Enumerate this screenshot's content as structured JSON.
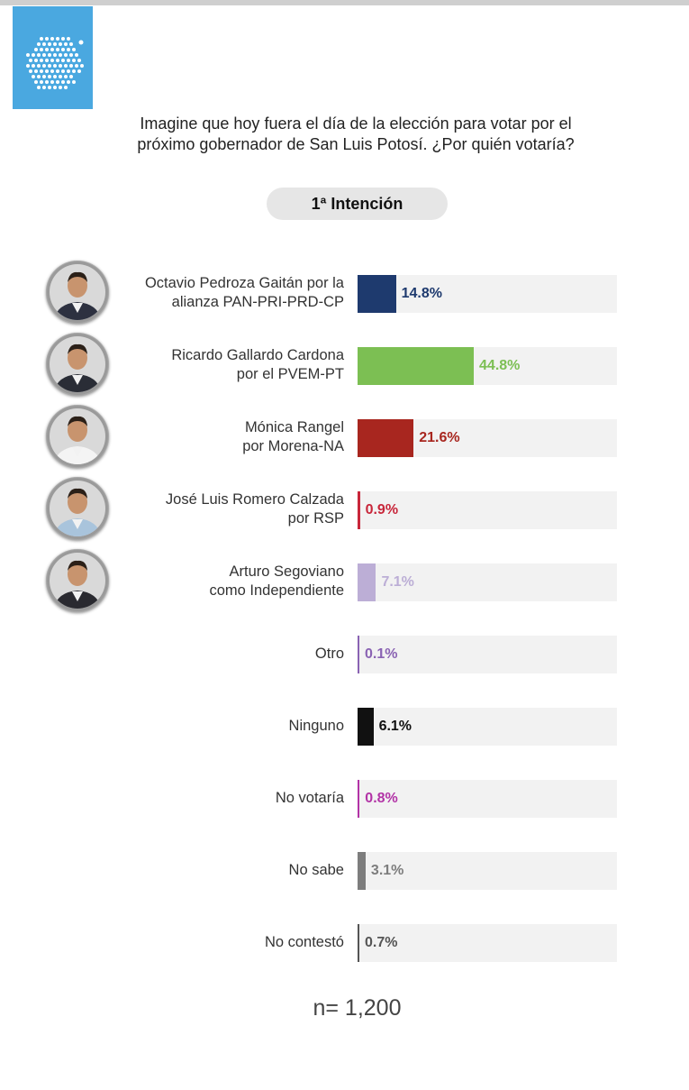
{
  "logo_icon": "dotted-hexagon-logo",
  "question": "Imagine que hoy fuera el día de la elección para votar por el próximo gobernador de San Luis Potosí. ¿Por quién votaría?",
  "question_lines": [
    "Imagine que hoy fuera el día de la elección para votar por el",
    "próximo gobernador de San Luis Potosí. ¿Por quién votaría?"
  ],
  "pill": "1ª Intención",
  "sample": "n= 1,200",
  "chart_data": {
    "type": "bar",
    "orientation": "horizontal",
    "title": "1ª Intención",
    "xlim": [
      0,
      100
    ],
    "categories": [
      "Octavio Pedroza Gaitán por la alianza PAN-PRI-PRD-CP",
      "Ricardo Gallardo Cardona por el PVEM-PT",
      "Mónica Rangel por Morena-NA",
      "José Luis Romero Calzada por RSP",
      "Arturo Segoviano como Independiente",
      "Otro",
      "Ninguno",
      "No votaría",
      "No sabe",
      "No contestó"
    ],
    "values": [
      14.8,
      44.8,
      21.6,
      0.9,
      7.1,
      0.1,
      6.1,
      0.8,
      3.1,
      0.7
    ],
    "rows": [
      {
        "lines": [
          "Octavio Pedroza Gaitán por la",
          "alianza PAN-PRI-PRD-CP"
        ],
        "value": 14.8,
        "label": "14.8%",
        "color": "#1e3a6e",
        "text_color": "#1e3a6e",
        "photo": "candidate-photo"
      },
      {
        "lines": [
          "Ricardo Gallardo Cardona",
          "por el PVEM-PT"
        ],
        "value": 44.8,
        "label": "44.8%",
        "color": "#7cbf53",
        "text_color": "#7cbf53",
        "photo": "candidate-photo"
      },
      {
        "lines": [
          "Mónica Rangel",
          "por Morena-NA"
        ],
        "value": 21.6,
        "label": "21.6%",
        "color": "#a8261f",
        "text_color": "#a8261f",
        "photo": "candidate-photo"
      },
      {
        "lines": [
          "José Luis Romero Calzada",
          "por RSP"
        ],
        "value": 0.9,
        "label": "0.9%",
        "color": "#c8263a",
        "text_color": "#c8263a",
        "photo": "candidate-photo"
      },
      {
        "lines": [
          "Arturo Segoviano",
          "como Independiente"
        ],
        "value": 7.1,
        "label": "7.1%",
        "color": "#bcaed6",
        "text_color": "#bcaed6",
        "photo": "candidate-photo"
      },
      {
        "lines": [
          "Otro"
        ],
        "value": 0.1,
        "label": "0.1%",
        "color": "#8a63b3",
        "text_color": "#8a63b3",
        "photo": null
      },
      {
        "lines": [
          "Ninguno"
        ],
        "value": 6.1,
        "label": "6.1%",
        "color": "#111111",
        "text_color": "#111111",
        "photo": null
      },
      {
        "lines": [
          "No votaría"
        ],
        "value": 0.8,
        "label": "0.8%",
        "color": "#b233a6",
        "text_color": "#b233a6",
        "photo": null
      },
      {
        "lines": [
          "No sabe"
        ],
        "value": 3.1,
        "label": "3.1%",
        "color": "#7d7d7d",
        "text_color": "#7d7d7d",
        "photo": null
      },
      {
        "lines": [
          "No contestó"
        ],
        "value": 0.7,
        "label": "0.7%",
        "color": "#555555",
        "text_color": "#555555",
        "photo": null
      }
    ]
  }
}
